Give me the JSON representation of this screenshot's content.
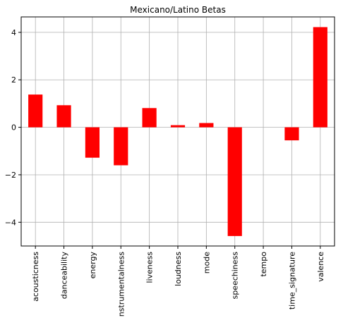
{
  "chart_data": {
    "type": "bar",
    "title": "Mexicano/Latino Betas",
    "xlabel": "",
    "ylabel": "",
    "categories": [
      "acousticness",
      "danceability",
      "energy",
      "instrumentalness",
      "liveness",
      "loudness",
      "mode",
      "speechiness",
      "tempo",
      "time_signature",
      "valence"
    ],
    "values": [
      1.38,
      0.93,
      -1.28,
      -1.6,
      0.81,
      0.09,
      0.18,
      -4.58,
      0.0,
      -0.55,
      4.22
    ],
    "ylim": [
      -5,
      4.65
    ],
    "yticks": [
      -4,
      -2,
      0,
      2,
      4
    ],
    "ytick_labels": [
      "−4",
      "−2",
      "0",
      "2",
      "4"
    ],
    "grid": true,
    "bar_color": "#ff0000"
  }
}
